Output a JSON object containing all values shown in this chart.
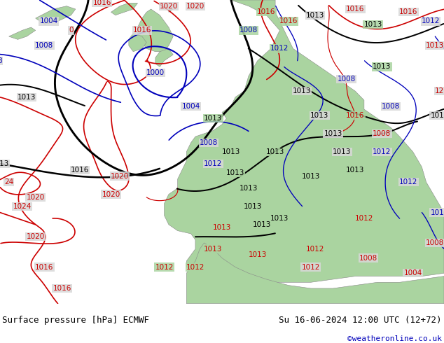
{
  "title_left": "Surface pressure [hPa] ECMWF",
  "title_right": "Su 16-06-2024 12:00 UTC (12+72)",
  "credit": "©weatheronline.co.uk",
  "ocean_color": "#d8d8d8",
  "land_color": "#aad4a0",
  "land_edge": "#888888",
  "fig_width": 6.34,
  "fig_height": 4.9,
  "footer_bg": "#e8e8e8",
  "title_fontsize": 9,
  "credit_fontsize": 8,
  "credit_color": "#0000bb",
  "black_lw": 1.8,
  "red_lw": 1.2,
  "blue_lw": 1.2,
  "label_fs": 7.5
}
